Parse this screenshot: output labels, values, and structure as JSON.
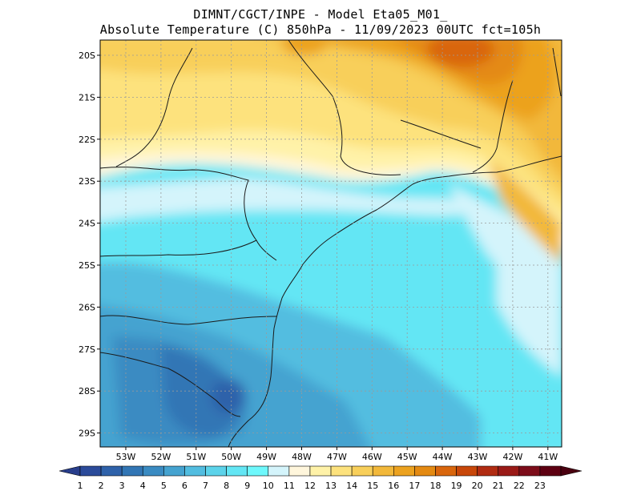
{
  "header": {
    "line1": "DIMNT/CGCT/INPE -  Model Eta05_M01_",
    "line2": "Absolute Temperature (C) 850hPa -  11/09/2023 00UTC fct=105h"
  },
  "map": {
    "lat_labels": [
      "20S",
      "21S",
      "22S",
      "23S",
      "24S",
      "25S",
      "26S",
      "27S",
      "28S",
      "29S"
    ],
    "lon_labels": [
      "53W",
      "52W",
      "51W",
      "50W",
      "49W",
      "48W",
      "47W",
      "46W",
      "45W",
      "44W",
      "43W",
      "42W",
      "41W"
    ],
    "field": "Absolute Temperature (C)",
    "level": "850hPa"
  },
  "colorbar": {
    "labels": [
      "1",
      "2",
      "3",
      "4",
      "5",
      "6",
      "7",
      "8",
      "9",
      "10",
      "11",
      "12",
      "13",
      "14",
      "15",
      "16",
      "17",
      "18",
      "19",
      "20",
      "21",
      "22",
      "23"
    ],
    "colors": [
      "#2b4b9a",
      "#2f62aa",
      "#3276b5",
      "#3a8bc2",
      "#45a3d0",
      "#52bde0",
      "#5cd3ea",
      "#63e6f4",
      "#6ef8fc",
      "#d4f4fb",
      "#fff6dc",
      "#fff2a8",
      "#fde27d",
      "#f8cf5a",
      "#f2b83a",
      "#eca21f",
      "#e48a12",
      "#d9660d",
      "#c8470a",
      "#b12c12",
      "#9a1a17",
      "#7d0d1a",
      "#5e0012"
    ],
    "underflow_color": "#283e8c",
    "overflow_color": "#4a0010"
  }
}
